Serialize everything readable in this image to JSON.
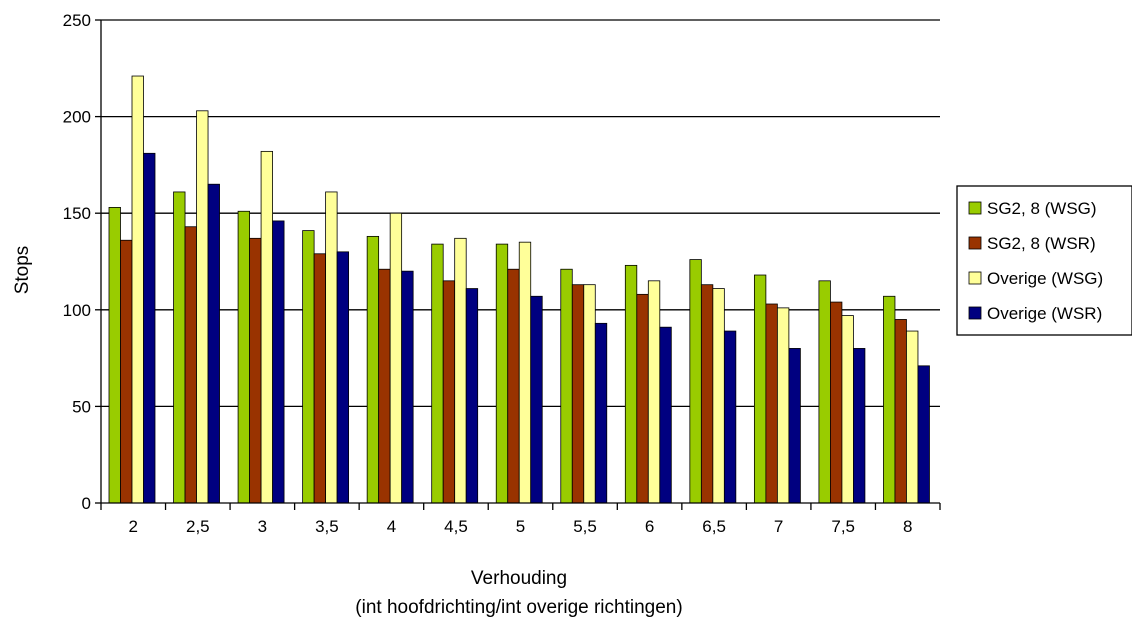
{
  "chart_data": {
    "type": "bar",
    "title": "",
    "xlabel": "Verhouding",
    "xlabel_line2": "(int hoofdrichting/int overige richtingen)",
    "ylabel": "Stops",
    "ylim": [
      0,
      250
    ],
    "yticks": [
      0,
      50,
      100,
      150,
      200,
      250
    ],
    "grid": "horizontal",
    "legend_position": "right",
    "categories": [
      "2",
      "2,5",
      "3",
      "3,5",
      "4",
      "4,5",
      "5",
      "5,5",
      "6",
      "6,5",
      "7",
      "7,5",
      "8"
    ],
    "series": [
      {
        "name": "SG2, 8 (WSG)",
        "color": "#99cc00",
        "values": [
          153,
          161,
          151,
          141,
          138,
          134,
          134,
          121,
          123,
          126,
          118,
          115,
          107
        ]
      },
      {
        "name": "SG2, 8 (WSR)",
        "color": "#993300",
        "values": [
          136,
          143,
          137,
          129,
          121,
          115,
          121,
          113,
          108,
          113,
          103,
          104,
          95
        ]
      },
      {
        "name": "Overige (WSG)",
        "color": "#ffff99",
        "values": [
          221,
          203,
          182,
          161,
          150,
          137,
          135,
          113,
          115,
          111,
          101,
          97,
          89
        ]
      },
      {
        "name": "Overige (WSR)",
        "color": "#000080",
        "values": [
          181,
          165,
          146,
          130,
          120,
          111,
          107,
          93,
          91,
          89,
          80,
          80,
          71
        ]
      }
    ]
  }
}
